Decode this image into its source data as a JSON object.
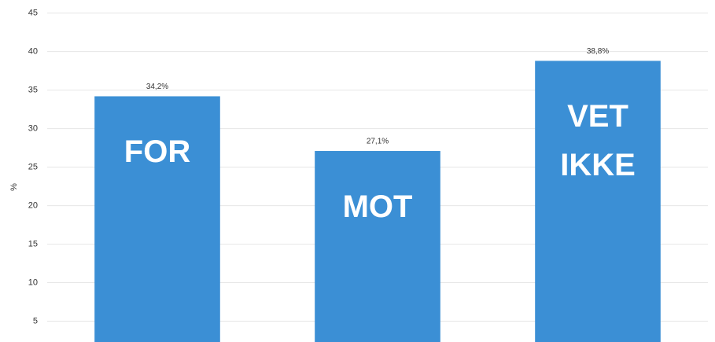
{
  "chart_data": {
    "type": "bar",
    "ylabel": "%",
    "categories": [
      "FOR",
      "MOT",
      "VET IKKE"
    ],
    "values": [
      34.2,
      27.1,
      38.8
    ],
    "value_labels": [
      "34,2%",
      "27,1%",
      "38,8%"
    ],
    "color": "#3b8fd5",
    "ylim": [
      2.3,
      46.7
    ],
    "yticks": [
      5,
      10,
      15,
      20,
      25,
      30,
      35,
      40,
      45
    ],
    "grid": true
  }
}
